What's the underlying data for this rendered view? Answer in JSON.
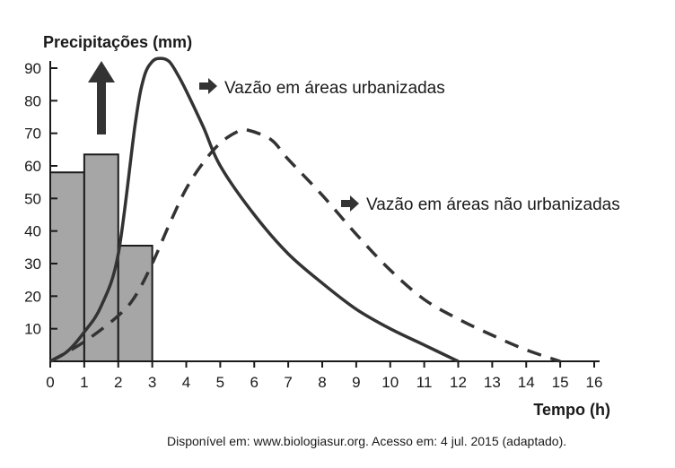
{
  "chart_data": {
    "type": "bar",
    "ylabel": "Precipitações (mm)",
    "xlabel": "Tempo (h)",
    "xlim": [
      0,
      16
    ],
    "ylim": [
      0,
      90
    ],
    "x_ticks": [
      0,
      1,
      2,
      3,
      4,
      5,
      6,
      7,
      8,
      9,
      10,
      11,
      12,
      13,
      14,
      15,
      16
    ],
    "y_ticks": [
      10,
      20,
      30,
      40,
      50,
      60,
      70,
      80,
      90
    ],
    "bars": {
      "name": "Precipitações",
      "x_start": [
        0,
        1,
        2
      ],
      "x_end": [
        1,
        2,
        3
      ],
      "values": [
        58,
        63.5,
        35.5
      ],
      "color": "#a6a6a6"
    },
    "series": [
      {
        "name": "Vazão em áreas urbanizadas",
        "style": "solid",
        "x": [
          0,
          0.5,
          1,
          1.5,
          2,
          2.5,
          2.75,
          3,
          3.25,
          3.5,
          3.75,
          4,
          4.5,
          5,
          6,
          7,
          8,
          9,
          10,
          11,
          12
        ],
        "y": [
          0,
          3,
          9,
          17,
          33,
          73,
          87,
          92,
          93,
          92,
          88,
          83,
          72,
          60,
          45,
          33,
          24,
          16,
          10,
          5,
          0
        ]
      },
      {
        "name": "Vazão em áreas não urbanizadas",
        "style": "dashed",
        "x": [
          0,
          1,
          2,
          2.5,
          3,
          3.5,
          4,
          4.5,
          5,
          5.5,
          5.8,
          6.5,
          7,
          8,
          9,
          10,
          11,
          12,
          13,
          14,
          15
        ],
        "y": [
          0,
          6,
          14,
          20,
          30,
          42,
          53,
          61,
          67,
          70.5,
          71,
          68,
          62,
          51,
          39,
          28,
          19,
          13,
          8,
          3.5,
          0
        ]
      }
    ],
    "annotations": [
      {
        "text": "Vazão em áreas urbanizadas",
        "target": "solid-line"
      },
      {
        "text": "Vazão em áreas não urbanizadas",
        "target": "dashed-line"
      }
    ],
    "source": "Disponível em: www.biologiasur.org. Acesso em: 4 jul. 2015 (adaptado)."
  },
  "colors": {
    "bars": "#a6a6a6",
    "lines": "#333333",
    "arrows": "#333333"
  }
}
